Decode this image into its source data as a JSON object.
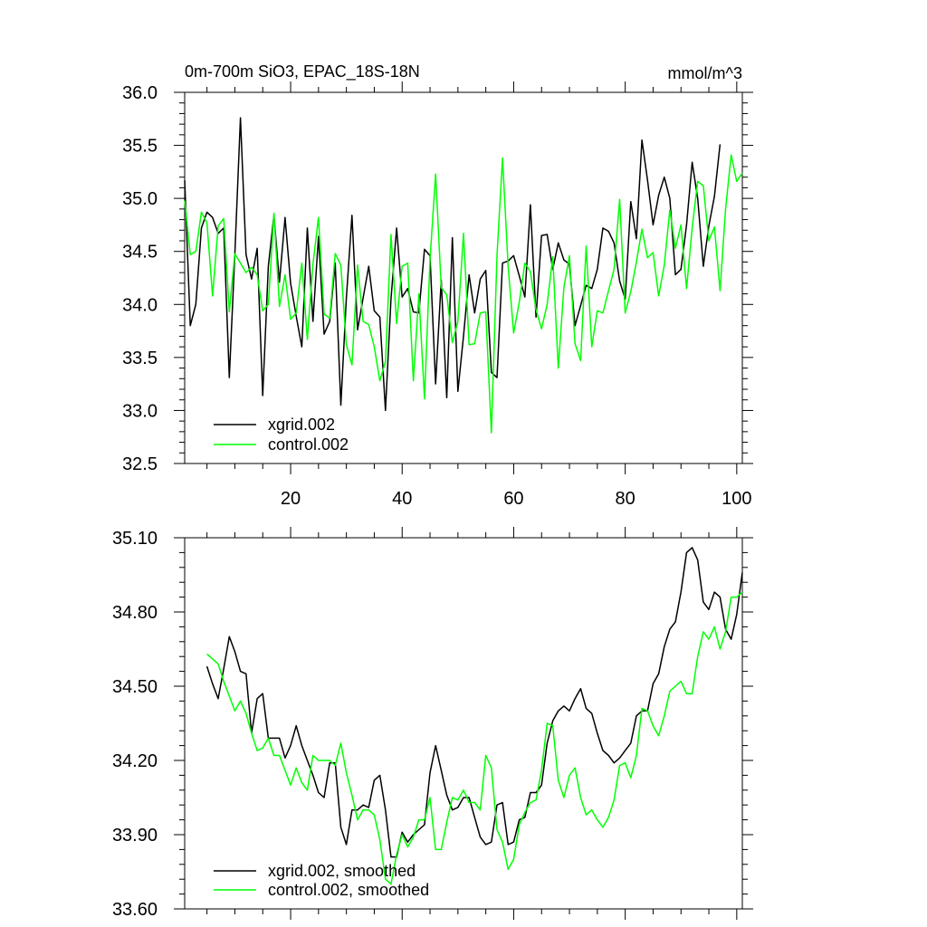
{
  "chart_data": [
    {
      "type": "line",
      "title": "0m-700m SiO3, EPAC_18S-18N",
      "units_label": "mmol/m^3",
      "xlabel": "",
      "ylabel": "",
      "xlim": [
        1,
        101
      ],
      "ylim": [
        32.5,
        36.0
      ],
      "x_ticks": [
        20,
        40,
        60,
        80,
        100
      ],
      "y_ticks": [
        32.5,
        33.0,
        33.5,
        34.0,
        34.5,
        35.0,
        35.5,
        36.0
      ],
      "y_tick_labels": [
        "32.5",
        "33.0",
        "33.5",
        "34.0",
        "34.5",
        "35.0",
        "35.5",
        "36.0"
      ],
      "legend_position": "bottom-left",
      "x_start": 1,
      "series": [
        {
          "name": "xgrid.002",
          "color": "#000000",
          "values": [
            35.17,
            33.8,
            34.0,
            34.72,
            34.87,
            34.82,
            34.67,
            34.72,
            33.31,
            34.47,
            35.76,
            34.47,
            34.24,
            34.53,
            33.14,
            34.36,
            34.84,
            34.21,
            34.82,
            34.2,
            33.89,
            33.6,
            34.72,
            33.84,
            34.64,
            33.72,
            33.84,
            34.39,
            33.05,
            34.06,
            34.84,
            33.76,
            34.06,
            34.36,
            33.94,
            33.88,
            33.0,
            34.05,
            34.72,
            34.07,
            34.15,
            33.93,
            33.92,
            34.52,
            34.46,
            33.25,
            34.23,
            33.12,
            34.63,
            33.18,
            33.7,
            34.28,
            33.92,
            34.24,
            34.32,
            33.36,
            33.31,
            34.39,
            34.41,
            34.46,
            34.27,
            34.07,
            34.94,
            33.88,
            34.65,
            34.66,
            34.33,
            34.58,
            34.42,
            34.38,
            33.8,
            33.99,
            34.18,
            34.15,
            34.33,
            34.72,
            34.69,
            34.58,
            34.22,
            34.05,
            34.97,
            34.62,
            35.55,
            35.17,
            34.75,
            35.03,
            35.2,
            35.0,
            34.28,
            34.33,
            34.75,
            35.34,
            35.0,
            34.36,
            34.74,
            35.02,
            35.51
          ]
        },
        {
          "name": "control.002",
          "color": "#00ff00",
          "values": [
            34.98,
            34.47,
            34.5,
            34.87,
            34.77,
            34.08,
            34.74,
            34.81,
            33.93,
            34.48,
            34.39,
            34.3,
            34.35,
            34.28,
            33.94,
            34.0,
            34.86,
            33.98,
            34.28,
            33.86,
            33.92,
            34.39,
            33.67,
            34.38,
            34.82,
            33.91,
            33.87,
            34.48,
            34.37,
            33.62,
            33.43,
            34.37,
            33.84,
            33.81,
            33.6,
            33.28,
            33.46,
            34.66,
            33.82,
            34.36,
            34.39,
            33.28,
            34.1,
            33.11,
            34.42,
            35.23,
            34.16,
            34.09,
            33.64,
            33.84,
            34.67,
            33.62,
            33.63,
            33.92,
            33.93,
            32.79,
            34.46,
            35.38,
            34.36,
            33.73,
            34.02,
            34.39,
            34.31,
            33.95,
            33.77,
            34.0,
            34.45,
            33.4,
            34.16,
            34.46,
            33.63,
            33.47,
            34.55,
            33.6,
            33.94,
            33.92,
            34.13,
            34.33,
            34.99,
            33.92,
            34.12,
            34.4,
            34.71,
            34.44,
            34.49,
            34.08,
            34.37,
            34.89,
            34.53,
            34.75,
            34.15,
            34.72,
            35.16,
            35.12,
            34.6,
            34.73,
            34.13,
            34.9,
            35.41,
            35.16,
            35.24
          ]
        }
      ]
    },
    {
      "type": "line",
      "title": "",
      "xlabel": "",
      "ylabel": "",
      "xlim": [
        1,
        101
      ],
      "ylim": [
        33.6,
        35.1
      ],
      "x_ticks": [
        20,
        40,
        60,
        80,
        100
      ],
      "y_ticks": [
        33.6,
        33.9,
        34.2,
        34.5,
        34.8,
        35.1
      ],
      "y_tick_labels": [
        "33.60",
        "33.90",
        "34.20",
        "34.50",
        "34.80",
        "35.10"
      ],
      "legend_position": "bottom-left",
      "x_start": 5,
      "series": [
        {
          "name": "xgrid.002, smoothed",
          "color": "#000000",
          "values": [
            34.58,
            34.51,
            34.45,
            34.57,
            34.7,
            34.64,
            34.56,
            34.55,
            34.31,
            34.45,
            34.47,
            34.29,
            34.29,
            34.29,
            34.21,
            34.26,
            34.34,
            34.26,
            34.2,
            34.14,
            34.07,
            34.05,
            34.19,
            34.19,
            33.93,
            33.86,
            34.0,
            34.0,
            34.02,
            34.01,
            34.12,
            34.14,
            34.0,
            33.81,
            33.81,
            33.91,
            33.87,
            33.9,
            33.92,
            33.94,
            34.15,
            34.26,
            34.16,
            34.06,
            34.0,
            34.01,
            34.05,
            34.05,
            33.97,
            33.89,
            33.86,
            33.87,
            34.02,
            34.03,
            33.86,
            33.87,
            33.96,
            33.97,
            34.07,
            34.07,
            34.1,
            34.27,
            34.36,
            34.4,
            34.42,
            34.4,
            34.45,
            34.49,
            34.41,
            34.39,
            34.31,
            34.24,
            34.22,
            34.19,
            34.21,
            34.24,
            34.27,
            34.38,
            34.4,
            34.4,
            34.51,
            34.55,
            34.66,
            34.73,
            34.76,
            34.88,
            35.04,
            35.06,
            35.01,
            34.84,
            34.81,
            34.88,
            34.86,
            34.73,
            34.69,
            34.79,
            34.96
          ]
        },
        {
          "name": "control.002, smoothed",
          "color": "#00ff00",
          "values": [
            34.63,
            34.61,
            34.59,
            34.52,
            34.46,
            34.4,
            34.44,
            34.39,
            34.31,
            34.24,
            34.25,
            34.29,
            34.22,
            34.22,
            34.16,
            34.1,
            34.17,
            34.11,
            34.08,
            34.22,
            34.2,
            34.2,
            34.2,
            34.18,
            34.27,
            34.15,
            34.06,
            33.96,
            34.0,
            34.0,
            33.98,
            33.88,
            33.72,
            33.7,
            33.82,
            33.9,
            33.85,
            33.89,
            33.96,
            33.96,
            34.05,
            33.84,
            33.84,
            33.95,
            34.05,
            34.04,
            34.08,
            34.03,
            34.03,
            34.0,
            34.22,
            34.17,
            33.92,
            33.87,
            33.76,
            33.8,
            33.94,
            33.99,
            34.03,
            34.04,
            34.16,
            34.35,
            34.34,
            34.12,
            34.05,
            34.14,
            34.17,
            34.05,
            33.98,
            34.0,
            33.96,
            33.93,
            33.97,
            34.04,
            34.18,
            34.19,
            34.13,
            34.22,
            34.41,
            34.4,
            34.34,
            34.3,
            34.38,
            34.48,
            34.5,
            34.52,
            34.47,
            34.47,
            34.62,
            34.72,
            34.69,
            34.74,
            34.65,
            34.72,
            34.86,
            34.86,
            34.88
          ]
        }
      ]
    }
  ]
}
